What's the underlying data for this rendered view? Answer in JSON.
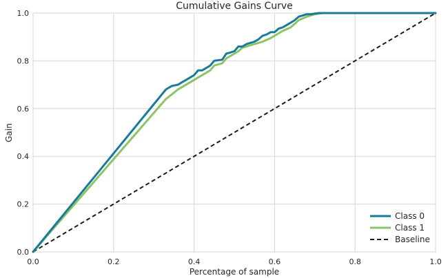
{
  "chart_data": {
    "type": "line",
    "title": "Cumulative Gains Curve",
    "xlabel": "Percentage of sample",
    "ylabel": "Gain",
    "xlim": [
      0,
      1
    ],
    "ylim": [
      0,
      1
    ],
    "xticks": [
      "0.0",
      "0.2",
      "0.4",
      "0.6",
      "0.8",
      "1.0"
    ],
    "yticks": [
      "0.0",
      "0.2",
      "0.4",
      "0.6",
      "0.8",
      "1.0"
    ],
    "grid": true,
    "legend_position": "bottom-right",
    "series": [
      {
        "name": "Class 0",
        "color": "#1a7a99",
        "dash": "solid",
        "x": [
          0,
          0.33,
          0.345,
          0.36,
          0.37,
          0.38,
          0.4,
          0.41,
          0.42,
          0.44,
          0.45,
          0.47,
          0.48,
          0.49,
          0.5,
          0.51,
          0.52,
          0.53,
          0.55,
          0.56,
          0.57,
          0.58,
          0.59,
          0.6,
          0.61,
          0.62,
          0.63,
          0.64,
          0.65,
          0.66,
          0.67,
          0.68,
          0.69,
          0.7,
          0.71,
          1.0
        ],
        "y": [
          0,
          0.68,
          0.695,
          0.7,
          0.71,
          0.72,
          0.74,
          0.76,
          0.76,
          0.78,
          0.8,
          0.805,
          0.83,
          0.835,
          0.84,
          0.86,
          0.86,
          0.87,
          0.88,
          0.89,
          0.905,
          0.91,
          0.92,
          0.92,
          0.935,
          0.94,
          0.95,
          0.96,
          0.97,
          0.985,
          0.99,
          0.995,
          0.995,
          0.998,
          1.0,
          1.0
        ]
      },
      {
        "name": "Class 1",
        "color": "#8cc465",
        "dash": "solid",
        "x": [
          0,
          0.33,
          0.345,
          0.36,
          0.38,
          0.4,
          0.41,
          0.42,
          0.44,
          0.45,
          0.47,
          0.48,
          0.5,
          0.51,
          0.52,
          0.53,
          0.55,
          0.57,
          0.59,
          0.6,
          0.61,
          0.62,
          0.64,
          0.65,
          0.66,
          0.68,
          0.7,
          0.72,
          1.0
        ],
        "y": [
          0,
          0.64,
          0.66,
          0.68,
          0.7,
          0.72,
          0.73,
          0.74,
          0.76,
          0.78,
          0.79,
          0.81,
          0.83,
          0.84,
          0.855,
          0.86,
          0.87,
          0.88,
          0.895,
          0.905,
          0.915,
          0.925,
          0.94,
          0.955,
          0.97,
          0.985,
          0.995,
          1.0,
          1.0
        ]
      },
      {
        "name": "Baseline",
        "color": "#1a1a1a",
        "dash": "dashed",
        "x": [
          0,
          1
        ],
        "y": [
          0,
          1
        ]
      }
    ]
  }
}
